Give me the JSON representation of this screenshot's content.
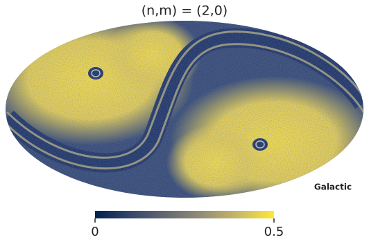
{
  "chart_data": {
    "type": "skymap",
    "title": "(n,m) = (2,0)",
    "coord_label": "Galactic",
    "colorbar": {
      "lim": [
        0,
        0.5
      ],
      "ticks": [
        0,
        0.5
      ],
      "colors": [
        "#00224e",
        "#35456c",
        "#666970",
        "#948e77",
        "#c8b866",
        "#fee838"
      ]
    }
  }
}
